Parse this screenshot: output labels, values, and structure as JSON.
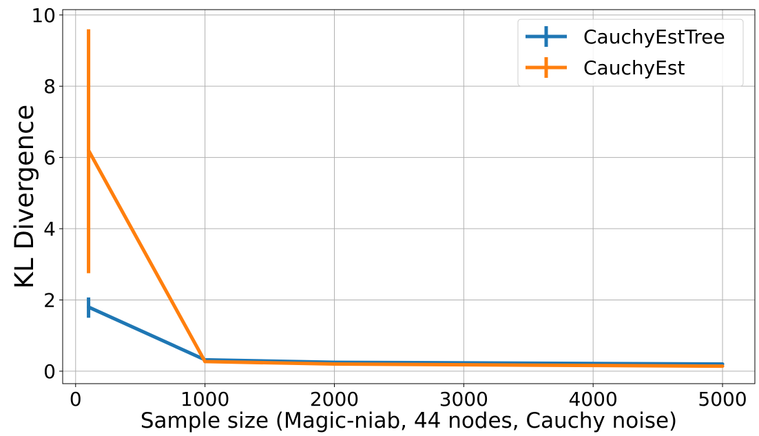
{
  "chart_data": {
    "type": "line",
    "xlabel": "Sample size (Magic-niab, 44 nodes, Cauchy noise)",
    "ylabel": "KL Divergence",
    "xlim": [
      -100,
      5250
    ],
    "ylim": [
      -0.35,
      10.15
    ],
    "x_ticks": [
      0,
      1000,
      2000,
      3000,
      4000,
      5000
    ],
    "y_ticks": [
      0,
      2,
      4,
      6,
      8,
      10
    ],
    "grid": true,
    "legend_position": "top-right",
    "series": [
      {
        "name": "CauchyEstTree",
        "color": "#1f77b4",
        "x": [
          100,
          1000,
          2000,
          5000
        ],
        "y": [
          1.8,
          0.32,
          0.25,
          0.2
        ],
        "yerr_low": [
          1.5,
          0.31,
          0.24,
          0.19
        ],
        "yerr_high": [
          2.07,
          0.33,
          0.26,
          0.21
        ]
      },
      {
        "name": "CauchyEst",
        "color": "#ff7f0e",
        "x": [
          100,
          1000,
          2000,
          5000
        ],
        "y": [
          6.2,
          0.27,
          0.2,
          0.14
        ],
        "yerr_low": [
          2.75,
          0.26,
          0.19,
          0.13
        ],
        "yerr_high": [
          9.6,
          0.28,
          0.21,
          0.15
        ]
      }
    ]
  }
}
